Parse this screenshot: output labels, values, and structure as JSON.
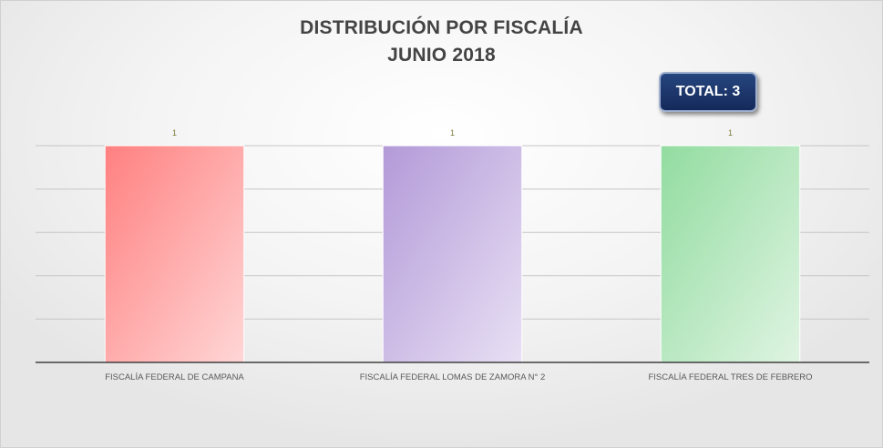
{
  "chart_data": {
    "type": "bar",
    "title": "DISTRIBUCIÓN POR FISCALÍA",
    "subtitle": "JUNIO 2018",
    "categories": [
      "FISCALÍA FEDERAL DE CAMPANA",
      "FISCALÍA FEDERAL LOMAS DE ZAMORA N° 2",
      "FISCALÍA FEDERAL TRES DE FEBRERO"
    ],
    "values": [
      1,
      1,
      1
    ],
    "data_labels": [
      "1",
      "1",
      "1"
    ],
    "ylim": [
      0,
      1
    ],
    "y_gridlines": [
      0,
      0.2,
      0.4,
      0.6,
      0.8,
      1.0
    ],
    "grid": true,
    "legend": "none",
    "bar_colors": [
      [
        "#ff8080",
        "#ffd6d6"
      ],
      [
        "#b39ad8",
        "#e8e0f4"
      ],
      [
        "#92dca0",
        "#dff4e2"
      ]
    ],
    "label_color": "#7a7a3a",
    "annotation": "TOTAL: 3"
  }
}
